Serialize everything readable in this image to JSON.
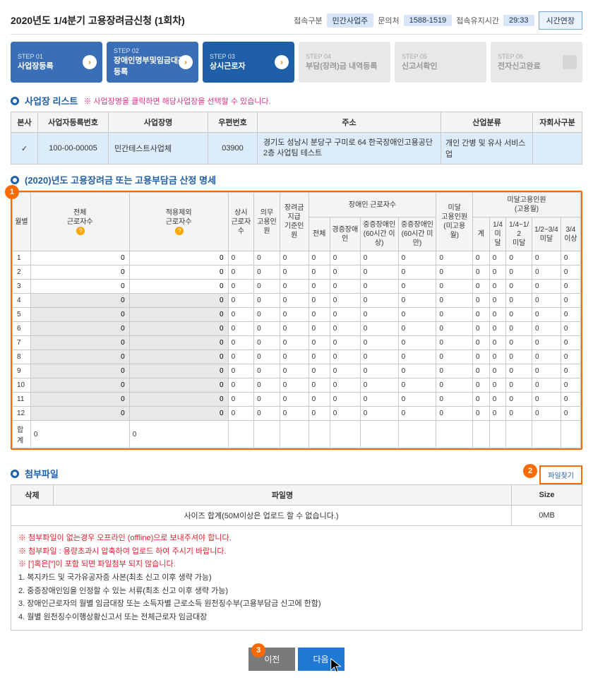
{
  "header": {
    "title": "2020년도 1/4분기 고용장려금신청 (1회차)",
    "access_type_label": "접속구분",
    "access_type": "민간사업주",
    "inquiry_label": "문의처",
    "inquiry": "1588-1519",
    "time_label": "접속유지시간",
    "time": "29:33",
    "extend_btn": "시간연장"
  },
  "steps": [
    {
      "num": "STEP 01",
      "title": "사업장등록",
      "style": "blue",
      "arrow": true
    },
    {
      "num": "STEP 02",
      "title": "장애인명부및임금대장등록",
      "style": "blue",
      "arrow": true
    },
    {
      "num": "STEP 03",
      "title": "상시근로자",
      "style": "dark",
      "arrow": true
    },
    {
      "num": "STEP 04",
      "title": "부담(장려)금 내역등록",
      "style": "gray"
    },
    {
      "num": "STEP 05",
      "title": "신고서확인",
      "style": "gray"
    },
    {
      "num": "STEP 06",
      "title": "전자신고완료",
      "style": "gray",
      "doc": true
    }
  ],
  "workplace": {
    "section_title": "사업장 리스트",
    "section_note": "※ 사업장명을 클릭하면 해당사업장을 선택할 수 있습니다.",
    "cols": [
      "본사",
      "사업자등록번호",
      "사업장명",
      "우편번호",
      "주소",
      "산업분류",
      "자회사구분"
    ],
    "row": {
      "hq": "✓",
      "reg_no": "100-00-00005",
      "name": "민간테스트사업체",
      "zip": "03900",
      "addr": "경기도 성남시 분당구 구미로 64 한국장애인고용공단 2층 사업팀 테스트",
      "industry": "개인 간병 및 유사 서비스업",
      "sub": ""
    }
  },
  "calc": {
    "section_title": "(2020)년도 고용장려금 또는 고용부담금 산정 명세",
    "headers": {
      "month": "월별",
      "total_workers": "전체\n근로자수",
      "excluded_workers": "적용제외\n근로자수",
      "regular": "상시\n근로자\n수",
      "mandatory": "의무\n고용인\n원",
      "incentive_base": "장려금\n지급\n기준인\n원",
      "disabled_group": "장애인 근로자수",
      "disabled_sub": [
        "전체",
        "경증장애인",
        "중증장애인\n(60시간 이\n상)",
        "중증장애인\n(60시간 미\n만)"
      ],
      "short_group": "미달\n고용인원\n(미고용\n월)",
      "short_months_group": "미달고용인원\n(고용월)",
      "short_sub": [
        "계",
        "1/4\n미\n달",
        "1/4~1/\n2\n미달",
        "1/2~3/4\n미달",
        "3/4\n이상"
      ]
    },
    "months": [
      "1",
      "2",
      "3",
      "4",
      "5",
      "6",
      "7",
      "8",
      "9",
      "10",
      "11",
      "12"
    ],
    "total_label": "합계",
    "disabled_from": 4,
    "zero": "0",
    "help_icon": "?"
  },
  "attach": {
    "section_title": "첨부파일",
    "btn_file": "파일찾기",
    "cols": [
      "삭제",
      "파일명",
      "Size"
    ],
    "size_row": "사이즈 합계(50M이상은 업로드 할 수 없습니다.)",
    "size_val": "0MB",
    "notes_red": [
      "※ 첨부파일이 없는경우 오프라인 (offline)으로 보내주셔야 합니다.",
      "※ 첨부파일 : 용량초과시 압축하여 업로드 하여 주시기 바랍니다.",
      "※ [']혹은[\"]이 포함 되면 파일첨부 되지 않습니다."
    ],
    "notes": [
      "1. 복지카드 및 국가유공자증 사본(최초 신고 이후 생략 가능)",
      "2. 중증장애인임을 인정할 수 있는 서류(최초 신고 이후 생략 가능)",
      "3. 장애인근로자의 월별 임금대장 또는 소득자별 근로소득 원천징수부(고용부담금 신고에 한함)",
      "4. 월별 원천징수이행상황신고서 또는 전체근로자 임금대장"
    ]
  },
  "buttons": {
    "prev": "이전",
    "next": "다음"
  },
  "markers": {
    "m1": "1",
    "m2": "2",
    "m3": "3"
  },
  "colors": {
    "accent": "#ff6a00",
    "primary": "#1f5fa8"
  }
}
